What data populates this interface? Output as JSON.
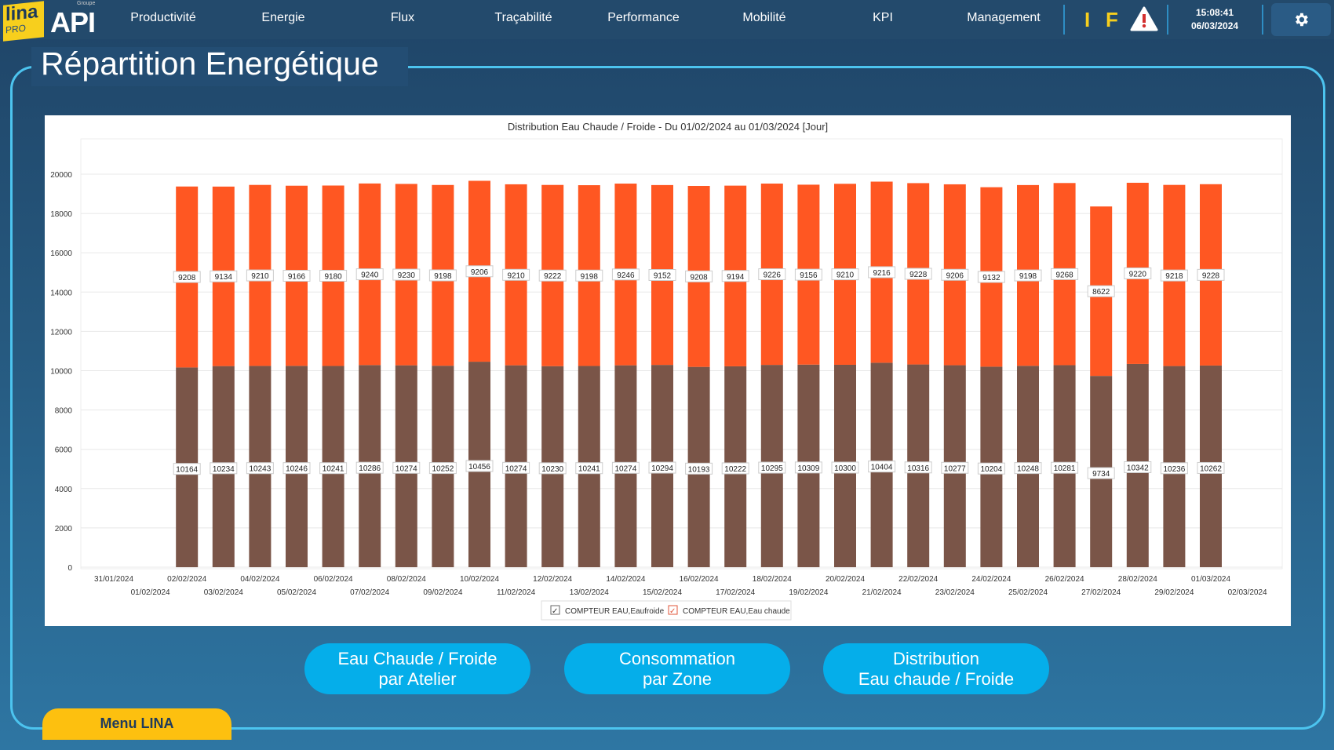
{
  "header": {
    "logo_lina": "lina",
    "logo_pro": "PRO",
    "logo_api": "API",
    "logo_groupe": "Groupe",
    "nav": [
      "Productivité",
      "Energie",
      "Flux",
      "Traçabilité",
      "Performance",
      "Mobilité",
      "KPI",
      "Management"
    ],
    "indicator_i": "I",
    "indicator_f": "F",
    "time": "15:08:41",
    "date": "06/03/2024"
  },
  "page_title": "Répartition Energétique",
  "buttons": [
    {
      "line1": "Eau Chaude / Froide",
      "line2": "par Atelier"
    },
    {
      "line1": "Consommation",
      "line2": "par Zone"
    },
    {
      "line1": "Distribution",
      "line2": "Eau chaude / Froide"
    }
  ],
  "menu_label": "Menu LINA",
  "colors": {
    "froide": "#7a5548",
    "chaude": "#ff5722",
    "accent": "#05aeea",
    "menu": "#fdc00f"
  },
  "chart_data": {
    "type": "bar",
    "stacked": true,
    "title": "Distribution Eau Chaude / Froide - Du 01/02/2024 au 01/03/2024 [Jour]",
    "ylim": [
      0,
      20000
    ],
    "yticks": [
      0,
      2000,
      4000,
      6000,
      8000,
      10000,
      12000,
      14000,
      16000,
      18000,
      20000
    ],
    "x_tick_labels": [
      "31/01/2024",
      "01/02/2024",
      "02/02/2024",
      "03/02/2024",
      "04/02/2024",
      "05/02/2024",
      "06/02/2024",
      "07/02/2024",
      "08/02/2024",
      "09/02/2024",
      "10/02/2024",
      "11/02/2024",
      "12/02/2024",
      "13/02/2024",
      "14/02/2024",
      "15/02/2024",
      "16/02/2024",
      "17/02/2024",
      "18/02/2024",
      "19/02/2024",
      "20/02/2024",
      "21/02/2024",
      "22/02/2024",
      "23/02/2024",
      "24/02/2024",
      "25/02/2024",
      "26/02/2024",
      "27/02/2024",
      "28/02/2024",
      "29/02/2024",
      "01/03/2024",
      "02/03/2024"
    ],
    "categories": [
      "02/02/2024",
      "03/02/2024",
      "04/02/2024",
      "05/02/2024",
      "06/02/2024",
      "07/02/2024",
      "08/02/2024",
      "09/02/2024",
      "10/02/2024",
      "11/02/2024",
      "12/02/2024",
      "13/02/2024",
      "14/02/2024",
      "15/02/2024",
      "16/02/2024",
      "17/02/2024",
      "18/02/2024",
      "19/02/2024",
      "20/02/2024",
      "21/02/2024",
      "22/02/2024",
      "23/02/2024",
      "24/02/2024",
      "25/02/2024",
      "26/02/2024",
      "27/02/2024",
      "28/02/2024",
      "29/02/2024",
      "01/03/2024"
    ],
    "series": [
      {
        "name": "COMPTEUR EAU,Eaufroide",
        "values": [
          10164,
          10234,
          10243,
          10246,
          10241,
          10286,
          10274,
          10252,
          10456,
          10274,
          10230,
          10241,
          10274,
          10294,
          10193,
          10222,
          10295,
          10309,
          10300,
          10404,
          10316,
          10277,
          10204,
          10248,
          10281,
          9734,
          10342,
          10236,
          10262
        ]
      },
      {
        "name": "COMPTEUR EAU,Eau chaude",
        "values": [
          9208,
          9134,
          9210,
          9166,
          9180,
          9240,
          9230,
          9198,
          9206,
          9210,
          9222,
          9198,
          9246,
          9152,
          9208,
          9194,
          9226,
          9156,
          9210,
          9216,
          9228,
          9206,
          9132,
          9198,
          9268,
          8622,
          9220,
          9218,
          9228
        ]
      }
    ],
    "legend": "bottom-center",
    "grid": true
  }
}
